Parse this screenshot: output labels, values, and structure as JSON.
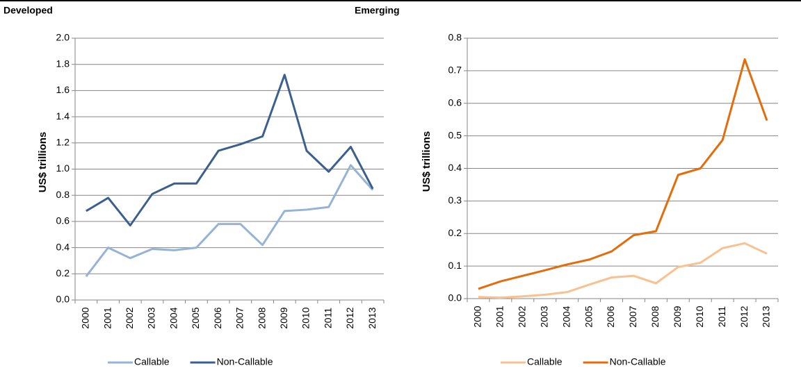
{
  "chart_data": [
    {
      "type": "line",
      "title": "Developed",
      "y_label": "US$ trillions",
      "categories": [
        "2000",
        "2001",
        "2002",
        "2003",
        "2004",
        "2005",
        "2006",
        "2007",
        "2008",
        "2009",
        "2010",
        "2011",
        "2012",
        "2013"
      ],
      "series": [
        {
          "name": "Callable",
          "color": "#95b3d7",
          "values": [
            0.18,
            0.4,
            0.32,
            0.39,
            0.38,
            0.4,
            0.58,
            0.58,
            0.42,
            0.68,
            0.69,
            0.71,
            1.03,
            0.84
          ]
        },
        {
          "name": "Non-Callable",
          "color": "#3b5f8e",
          "values": [
            0.68,
            0.78,
            0.57,
            0.81,
            0.89,
            0.89,
            1.14,
            1.19,
            1.25,
            1.72,
            1.14,
            0.98,
            1.17,
            0.85
          ]
        }
      ],
      "ylim": [
        0,
        2.0
      ],
      "yticks": [
        {
          "value": 0,
          "label": "0.0"
        },
        0.2,
        0.4,
        0.6,
        0.8,
        {
          "value": 1,
          "label": "1.0"
        },
        1.2,
        1.4,
        1.6,
        1.8,
        {
          "value": 2,
          "label": "2.0"
        }
      ],
      "grid": true,
      "legend": "bottom"
    },
    {
      "type": "line",
      "title": "Emerging",
      "y_label": "US$ trillions",
      "categories": [
        "2000",
        "2001",
        "2002",
        "2003",
        "2004",
        "2005",
        "2006",
        "2007",
        "2008",
        "2009",
        "2010",
        "2011",
        "2012",
        "2013"
      ],
      "series": [
        {
          "name": "Callable",
          "color": "#fac090",
          "values": [
            0.005,
            0.003,
            0.007,
            0.012,
            0.02,
            0.043,
            0.065,
            0.07,
            0.047,
            0.097,
            0.11,
            0.155,
            0.17,
            0.138
          ]
        },
        {
          "name": "Non-Callable",
          "color": "#e46c0a",
          "values": [
            0.03,
            0.053,
            0.07,
            0.087,
            0.105,
            0.12,
            0.145,
            0.195,
            0.207,
            0.38,
            0.4,
            0.487,
            0.735,
            0.547
          ]
        }
      ],
      "ylim": [
        0,
        0.8
      ],
      "yticks": [
        {
          "value": 0,
          "label": "0.0"
        },
        0.1,
        0.2,
        0.3,
        0.4,
        0.5,
        0.6,
        0.7,
        0.8
      ],
      "grid": true,
      "legend": "bottom"
    }
  ]
}
